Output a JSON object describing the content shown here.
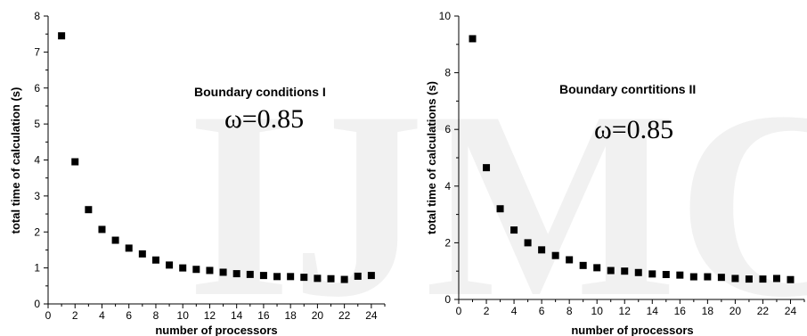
{
  "watermark": "IJMC",
  "chart_data": [
    {
      "type": "scatter",
      "annotation": "Boundary conditions I",
      "omega_label": "ω=0.85",
      "xlabel": "number of processors",
      "ylabel": "total time of calculation (s)",
      "xlim": [
        0,
        25
      ],
      "ylim": [
        0,
        8
      ],
      "xticks": [
        0,
        2,
        4,
        6,
        8,
        10,
        12,
        14,
        16,
        18,
        20,
        22,
        24
      ],
      "yticks": [
        0,
        1,
        2,
        3,
        4,
        5,
        6,
        7,
        8
      ],
      "grid": false,
      "marker": "square",
      "color": "#000000",
      "x": [
        1,
        2,
        3,
        4,
        5,
        6,
        7,
        8,
        9,
        10,
        11,
        12,
        13,
        14,
        15,
        16,
        17,
        18,
        19,
        20,
        21,
        22,
        23,
        24
      ],
      "y": [
        7.45,
        3.95,
        2.62,
        2.07,
        1.77,
        1.55,
        1.39,
        1.22,
        1.08,
        1.0,
        0.96,
        0.93,
        0.88,
        0.84,
        0.82,
        0.79,
        0.76,
        0.76,
        0.74,
        0.71,
        0.7,
        0.68,
        0.77,
        0.79
      ]
    },
    {
      "type": "scatter",
      "annotation": "Boundary conrtitions II",
      "omega_label": "ω=0.85",
      "xlabel": "number of processors",
      "ylabel": "total time of calculations (s)",
      "xlim": [
        0,
        25
      ],
      "ylim": [
        0,
        10
      ],
      "xticks": [
        0,
        2,
        4,
        6,
        8,
        10,
        12,
        14,
        16,
        18,
        20,
        22,
        24
      ],
      "yticks": [
        0,
        2,
        4,
        6,
        8,
        10
      ],
      "grid": false,
      "marker": "square",
      "color": "#000000",
      "x": [
        1,
        2,
        3,
        4,
        5,
        6,
        7,
        8,
        9,
        10,
        11,
        12,
        13,
        14,
        15,
        16,
        17,
        18,
        19,
        20,
        21,
        22,
        23,
        24
      ],
      "y": [
        9.2,
        4.65,
        3.2,
        2.45,
        2.0,
        1.75,
        1.55,
        1.4,
        1.2,
        1.12,
        1.02,
        1.0,
        0.95,
        0.9,
        0.88,
        0.86,
        0.8,
        0.8,
        0.78,
        0.74,
        0.72,
        0.72,
        0.74,
        0.7
      ]
    }
  ]
}
